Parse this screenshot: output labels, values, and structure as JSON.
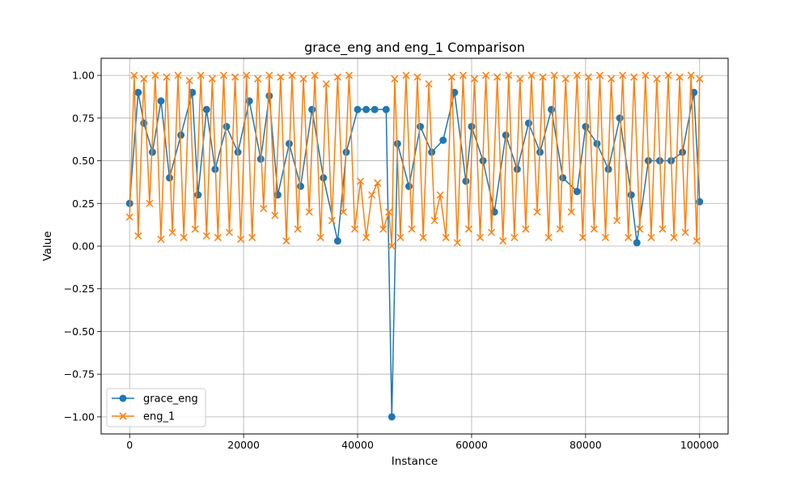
{
  "chart_data": {
    "type": "line",
    "title": "grace_eng and eng_1 Comparison",
    "xlabel": "Instance",
    "ylabel": "Value",
    "xlim": [
      -5000,
      105000
    ],
    "ylim": [
      -1.1,
      1.1
    ],
    "x_ticks": [
      0,
      20000,
      40000,
      60000,
      80000,
      100000
    ],
    "x_tick_labels": [
      "0",
      "20000",
      "40000",
      "60000",
      "80000",
      "100000"
    ],
    "y_ticks": [
      -1.0,
      -0.75,
      -0.5,
      -0.25,
      0.0,
      0.25,
      0.5,
      0.75,
      1.0
    ],
    "y_tick_labels": [
      "−1.00",
      "−0.75",
      "−0.50",
      "−0.25",
      "0.00",
      "0.25",
      "0.50",
      "0.75",
      "1.00"
    ],
    "grid": true,
    "legend_position": "lower-left",
    "series": [
      {
        "name": "grace_eng",
        "color": "#1f77b4",
        "marker": "o",
        "x": [
          0,
          1500,
          2500,
          4000,
          5500,
          7000,
          9000,
          11000,
          12000,
          13500,
          15000,
          17000,
          19000,
          21000,
          23000,
          24500,
          26000,
          28000,
          30000,
          32000,
          34000,
          36500,
          38000,
          40000,
          41500,
          43000,
          45000,
          46000,
          47000,
          49000,
          51000,
          53000,
          55000,
          57000,
          59000,
          60000,
          62000,
          64000,
          66000,
          68000,
          70000,
          72000,
          74000,
          76000,
          78500,
          80000,
          82000,
          84000,
          86000,
          88000,
          89000,
          91000,
          93000,
          95000,
          97000,
          99000,
          100000
        ],
        "y": [
          0.25,
          0.9,
          0.72,
          0.55,
          0.85,
          0.4,
          0.65,
          0.9,
          0.3,
          0.8,
          0.45,
          0.7,
          0.55,
          0.85,
          0.51,
          0.88,
          0.3,
          0.6,
          0.35,
          0.8,
          0.4,
          0.03,
          0.55,
          0.8,
          0.8,
          0.8,
          0.8,
          -1.0,
          0.6,
          0.35,
          0.7,
          0.55,
          0.62,
          0.9,
          0.38,
          0.7,
          0.5,
          0.2,
          0.65,
          0.45,
          0.72,
          0.55,
          0.8,
          0.4,
          0.32,
          0.7,
          0.6,
          0.45,
          0.75,
          0.3,
          0.02,
          0.5,
          0.5,
          0.5,
          0.55,
          0.9,
          0.26
        ]
      },
      {
        "name": "eng_1",
        "color": "#ff7f0e",
        "marker": "x",
        "x": [
          0,
          800,
          1500,
          2500,
          3500,
          4500,
          5500,
          6500,
          7500,
          8500,
          9500,
          10500,
          11500,
          12500,
          13500,
          14500,
          15500,
          16500,
          17500,
          18500,
          19500,
          20500,
          21500,
          22500,
          23500,
          24500,
          25500,
          26500,
          27500,
          28500,
          29500,
          30500,
          31500,
          32500,
          33500,
          34500,
          35500,
          36500,
          37500,
          38500,
          39500,
          40500,
          41500,
          42500,
          43500,
          44500,
          45500,
          46000,
          46500,
          47500,
          48500,
          49500,
          50500,
          51500,
          52500,
          53500,
          54500,
          55500,
          56500,
          57500,
          58500,
          59500,
          60500,
          61500,
          62500,
          63500,
          64500,
          65500,
          66500,
          67500,
          68500,
          69500,
          70500,
          71500,
          72500,
          73500,
          74500,
          75500,
          76500,
          77500,
          78500,
          79500,
          80500,
          81500,
          82500,
          83500,
          84500,
          85500,
          86500,
          87500,
          88500,
          89500,
          90500,
          91500,
          92500,
          93500,
          94500,
          95500,
          96500,
          97500,
          98500,
          99500,
          100000
        ],
        "y": [
          0.17,
          1.0,
          0.06,
          0.98,
          0.25,
          1.0,
          0.04,
          0.99,
          0.08,
          1.0,
          0.05,
          0.97,
          0.1,
          1.0,
          0.06,
          0.98,
          0.05,
          1.0,
          0.08,
          0.99,
          0.04,
          1.0,
          0.05,
          0.98,
          0.22,
          1.0,
          0.18,
          0.99,
          0.03,
          1.0,
          0.1,
          0.98,
          0.2,
          1.0,
          0.05,
          0.95,
          0.15,
          0.99,
          0.2,
          1.0,
          0.1,
          0.38,
          0.05,
          0.3,
          0.37,
          0.1,
          0.2,
          0.0,
          0.98,
          0.05,
          1.0,
          0.1,
          0.99,
          0.05,
          0.95,
          0.15,
          0.3,
          0.05,
          0.99,
          0.02,
          1.0,
          0.1,
          0.98,
          0.05,
          1.0,
          0.08,
          0.99,
          0.03,
          1.0,
          0.05,
          0.98,
          0.1,
          1.0,
          0.2,
          0.99,
          0.05,
          1.0,
          0.1,
          0.98,
          0.2,
          1.0,
          0.05,
          0.99,
          0.1,
          1.0,
          0.05,
          0.98,
          0.15,
          1.0,
          0.05,
          0.99,
          0.1,
          1.0,
          0.05,
          0.98,
          0.1,
          1.0,
          0.05,
          0.99,
          0.08,
          1.0,
          0.03,
          0.98
        ]
      }
    ]
  }
}
